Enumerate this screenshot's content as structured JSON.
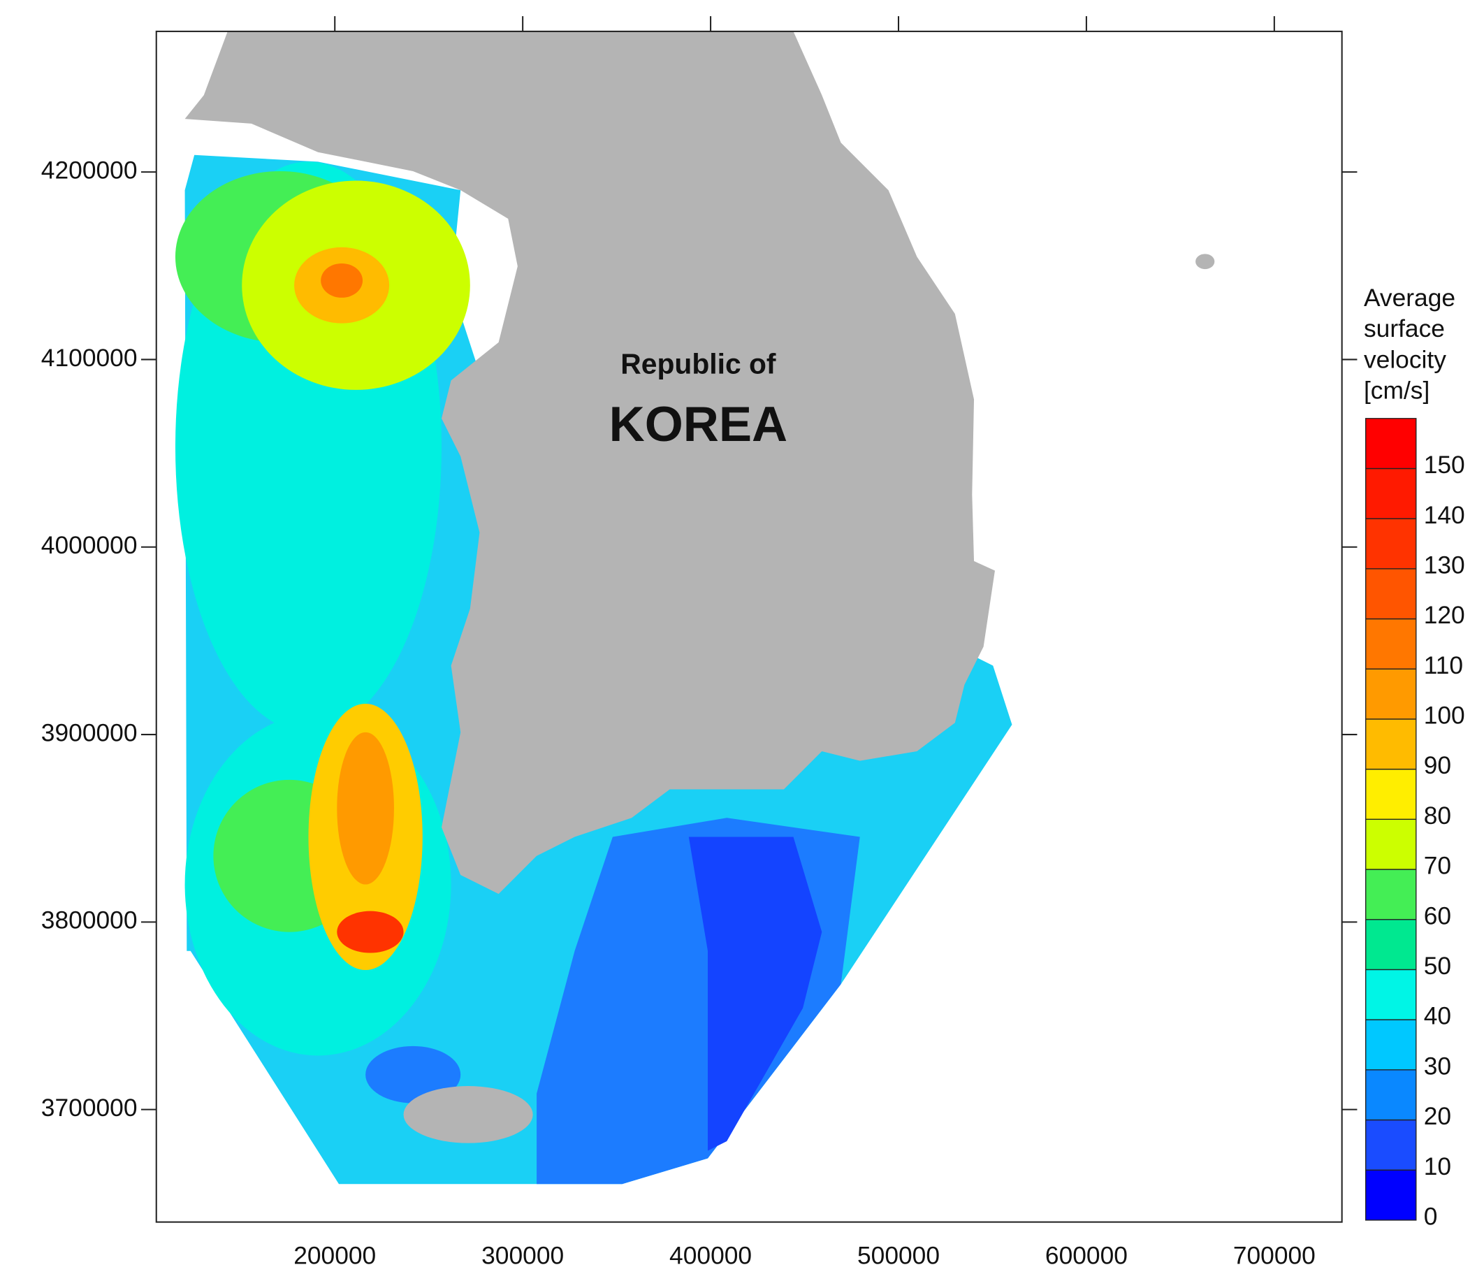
{
  "chart_data": {
    "type": "contour-map",
    "annotations": [
      "Republic of",
      "KOREA"
    ],
    "xlim": [
      105000,
      736000
    ],
    "ylim": [
      3640000,
      4275000
    ],
    "xticks": [
      200000,
      300000,
      400000,
      500000,
      600000,
      700000
    ],
    "yticks": [
      3700000,
      3800000,
      3900000,
      4000000,
      4100000,
      4200000
    ],
    "colorbar": {
      "title": [
        "Average",
        "surface",
        "velocity",
        "[cm/s]"
      ],
      "lim": [
        0,
        160
      ],
      "ticks": [
        0,
        10,
        20,
        30,
        40,
        50,
        60,
        70,
        80,
        90,
        100,
        110,
        120,
        130,
        140,
        150
      ],
      "colors": [
        "#0000ff",
        "#1a4cff",
        "#0a88ff",
        "#00c8ff",
        "#00f5e6",
        "#00e890",
        "#44ee55",
        "#ccff00",
        "#ffee00",
        "#ffbb00",
        "#ff9a00",
        "#ff7700",
        "#ff5500",
        "#ff3300",
        "#ff1a00",
        "#ff0000"
      ]
    }
  }
}
